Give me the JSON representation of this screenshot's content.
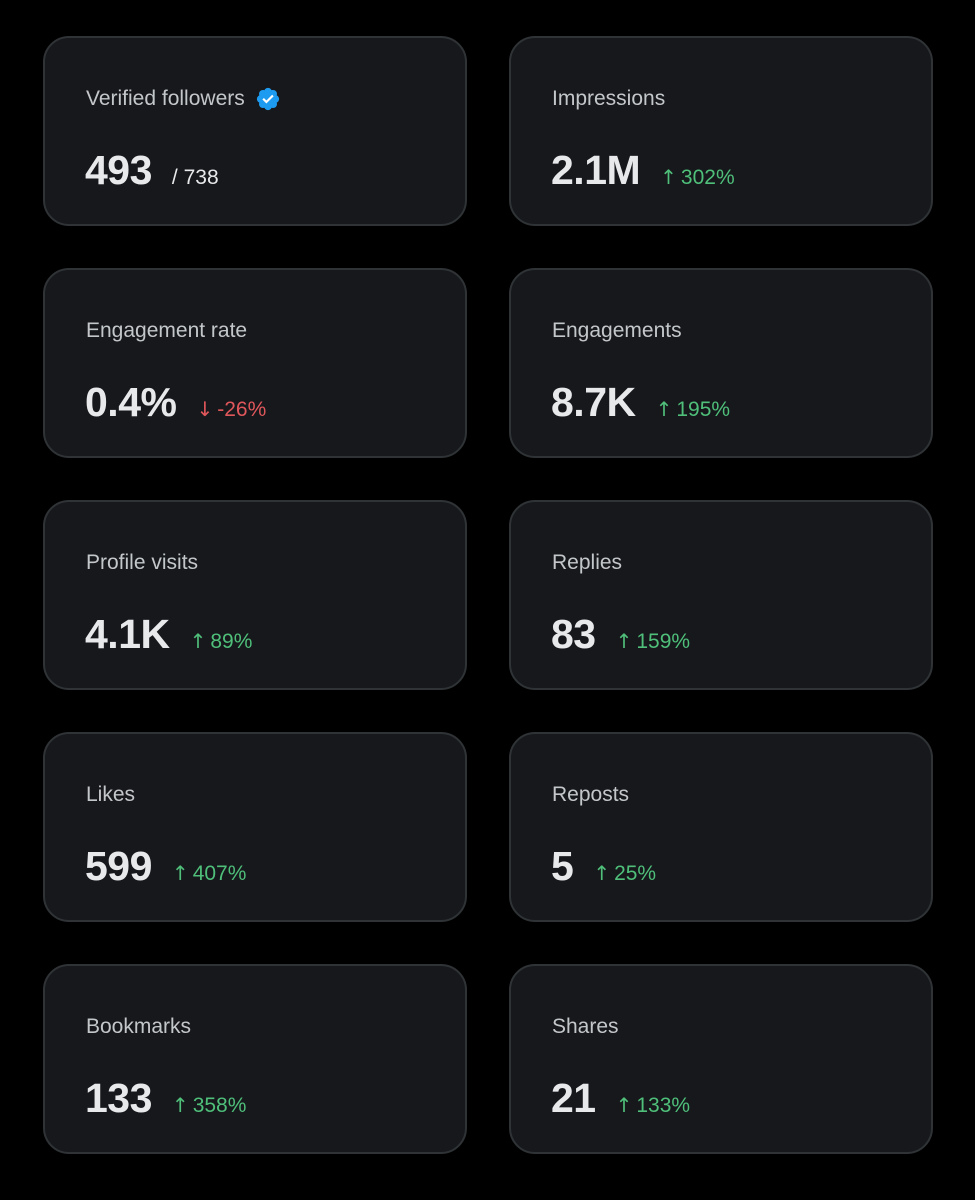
{
  "colors": {
    "background": "#000000",
    "card": "#16181c",
    "border": "#2f3336",
    "up": "#4fbf7a",
    "down": "#e0575b",
    "verified": "#1d9bf0"
  },
  "cards": [
    {
      "label": "Verified followers",
      "value": "493",
      "sub": "/ 738",
      "icon": "verified-badge-icon"
    },
    {
      "label": "Impressions",
      "value": "2.1M",
      "arrow": "↑",
      "change": "302%"
    },
    {
      "label": "Engagement rate",
      "value": "0.4%",
      "arrow": "↓",
      "change": "-26%"
    },
    {
      "label": "Engagements",
      "value": "8.7K",
      "arrow": "↑",
      "change": "195%"
    },
    {
      "label": "Profile visits",
      "value": "4.1K",
      "arrow": "↑",
      "change": "89%"
    },
    {
      "label": "Replies",
      "value": "83",
      "arrow": "↑",
      "change": "159%"
    },
    {
      "label": "Likes",
      "value": "599",
      "arrow": "↑",
      "change": "407%"
    },
    {
      "label": "Reposts",
      "value": "5",
      "arrow": "↑",
      "change": "25%"
    },
    {
      "label": "Bookmarks",
      "value": "133",
      "arrow": "↑",
      "change": "358%"
    },
    {
      "label": "Shares",
      "value": "21",
      "arrow": "↑",
      "change": "133%"
    }
  ]
}
